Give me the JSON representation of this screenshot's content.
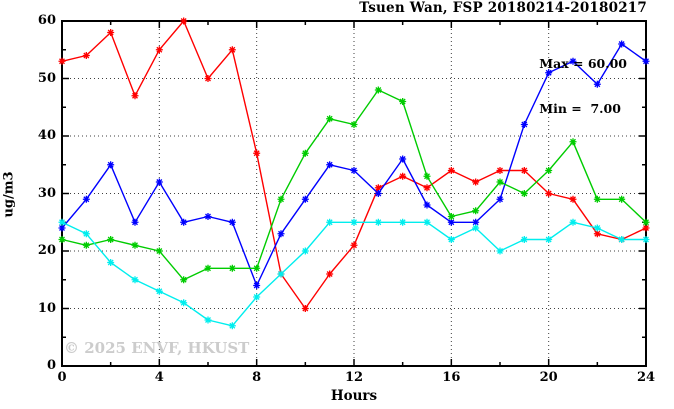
{
  "title": "Tsuen Wan, FSP 20180214-20180217",
  "legend": {
    "max_label": "Max = 60.00",
    "min_label": "Min =  7.00"
  },
  "watermark": "© 2025 ENVF, HKUST",
  "chart_data": {
    "type": "line",
    "title": "Tsuen Wan, FSP 20180214-20180217",
    "xlabel": "Hours",
    "ylabel": "ug/m3",
    "xlim": [
      0,
      24
    ],
    "ylim": [
      0,
      60
    ],
    "x_major_ticks": [
      0,
      4,
      8,
      12,
      16,
      20,
      24
    ],
    "x_minor_tick_step": 2,
    "y_major_ticks": [
      0,
      10,
      20,
      30,
      40,
      50,
      60
    ],
    "y_minor_tick_step": 5,
    "grid": "dotted-at-major-ticks",
    "legend_position": "top-right-inside",
    "max_annotation": "Max = 60.00",
    "min_annotation": "Min =  7.00",
    "marker": "star",
    "x": [
      0,
      1,
      2,
      3,
      4,
      5,
      6,
      7,
      8,
      9,
      10,
      11,
      12,
      13,
      14,
      15,
      16,
      17,
      18,
      19,
      20,
      21,
      22,
      23,
      24
    ],
    "series": [
      {
        "name": "red",
        "color": "#ff0000",
        "values": [
          53,
          54,
          58,
          47,
          55,
          60,
          50,
          55,
          37,
          16,
          10,
          16,
          21,
          31,
          33,
          31,
          34,
          32,
          34,
          34,
          30,
          29,
          23,
          22,
          24
        ]
      },
      {
        "name": "blue",
        "color": "#0000ff",
        "values": [
          24,
          29,
          35,
          25,
          32,
          25,
          26,
          25,
          14,
          23,
          29,
          35,
          34,
          30,
          36,
          28,
          25,
          25,
          29,
          42,
          51,
          53,
          49,
          56,
          53
        ]
      },
      {
        "name": "green",
        "color": "#00cc00",
        "values": [
          22,
          21,
          22,
          21,
          20,
          15,
          17,
          17,
          17,
          29,
          37,
          43,
          42,
          48,
          46,
          33,
          26,
          27,
          32,
          30,
          34,
          39,
          29,
          29,
          25
        ]
      },
      {
        "name": "cyan",
        "color": "#00eeee",
        "values": [
          25,
          23,
          18,
          15,
          13,
          11,
          8,
          7,
          12,
          16,
          20,
          25,
          25,
          25,
          25,
          25,
          22,
          24,
          20,
          22,
          22,
          25,
          24,
          22,
          22
        ]
      }
    ]
  }
}
